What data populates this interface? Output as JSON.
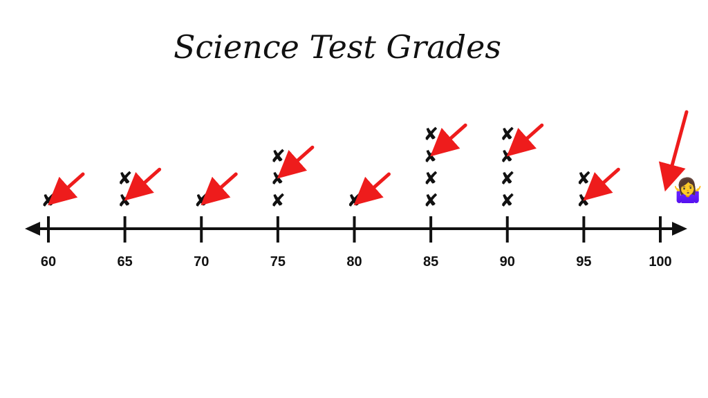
{
  "chart_data": {
    "type": "dot_plot",
    "title": "Science Test Grades",
    "categories": [
      "60",
      "65",
      "70",
      "75",
      "80",
      "85",
      "90",
      "95",
      "100"
    ],
    "x": [
      60,
      65,
      70,
      75,
      80,
      85,
      90,
      95,
      100
    ],
    "counts": [
      1,
      2,
      1,
      3,
      1,
      4,
      4,
      2,
      0
    ],
    "marker": "✘",
    "xlim": [
      60,
      100
    ],
    "annotations": {
      "arrow_color": "#ee1c1c",
      "shrug_emoji": "🤷‍♀️"
    },
    "axis_color": "#111111"
  }
}
